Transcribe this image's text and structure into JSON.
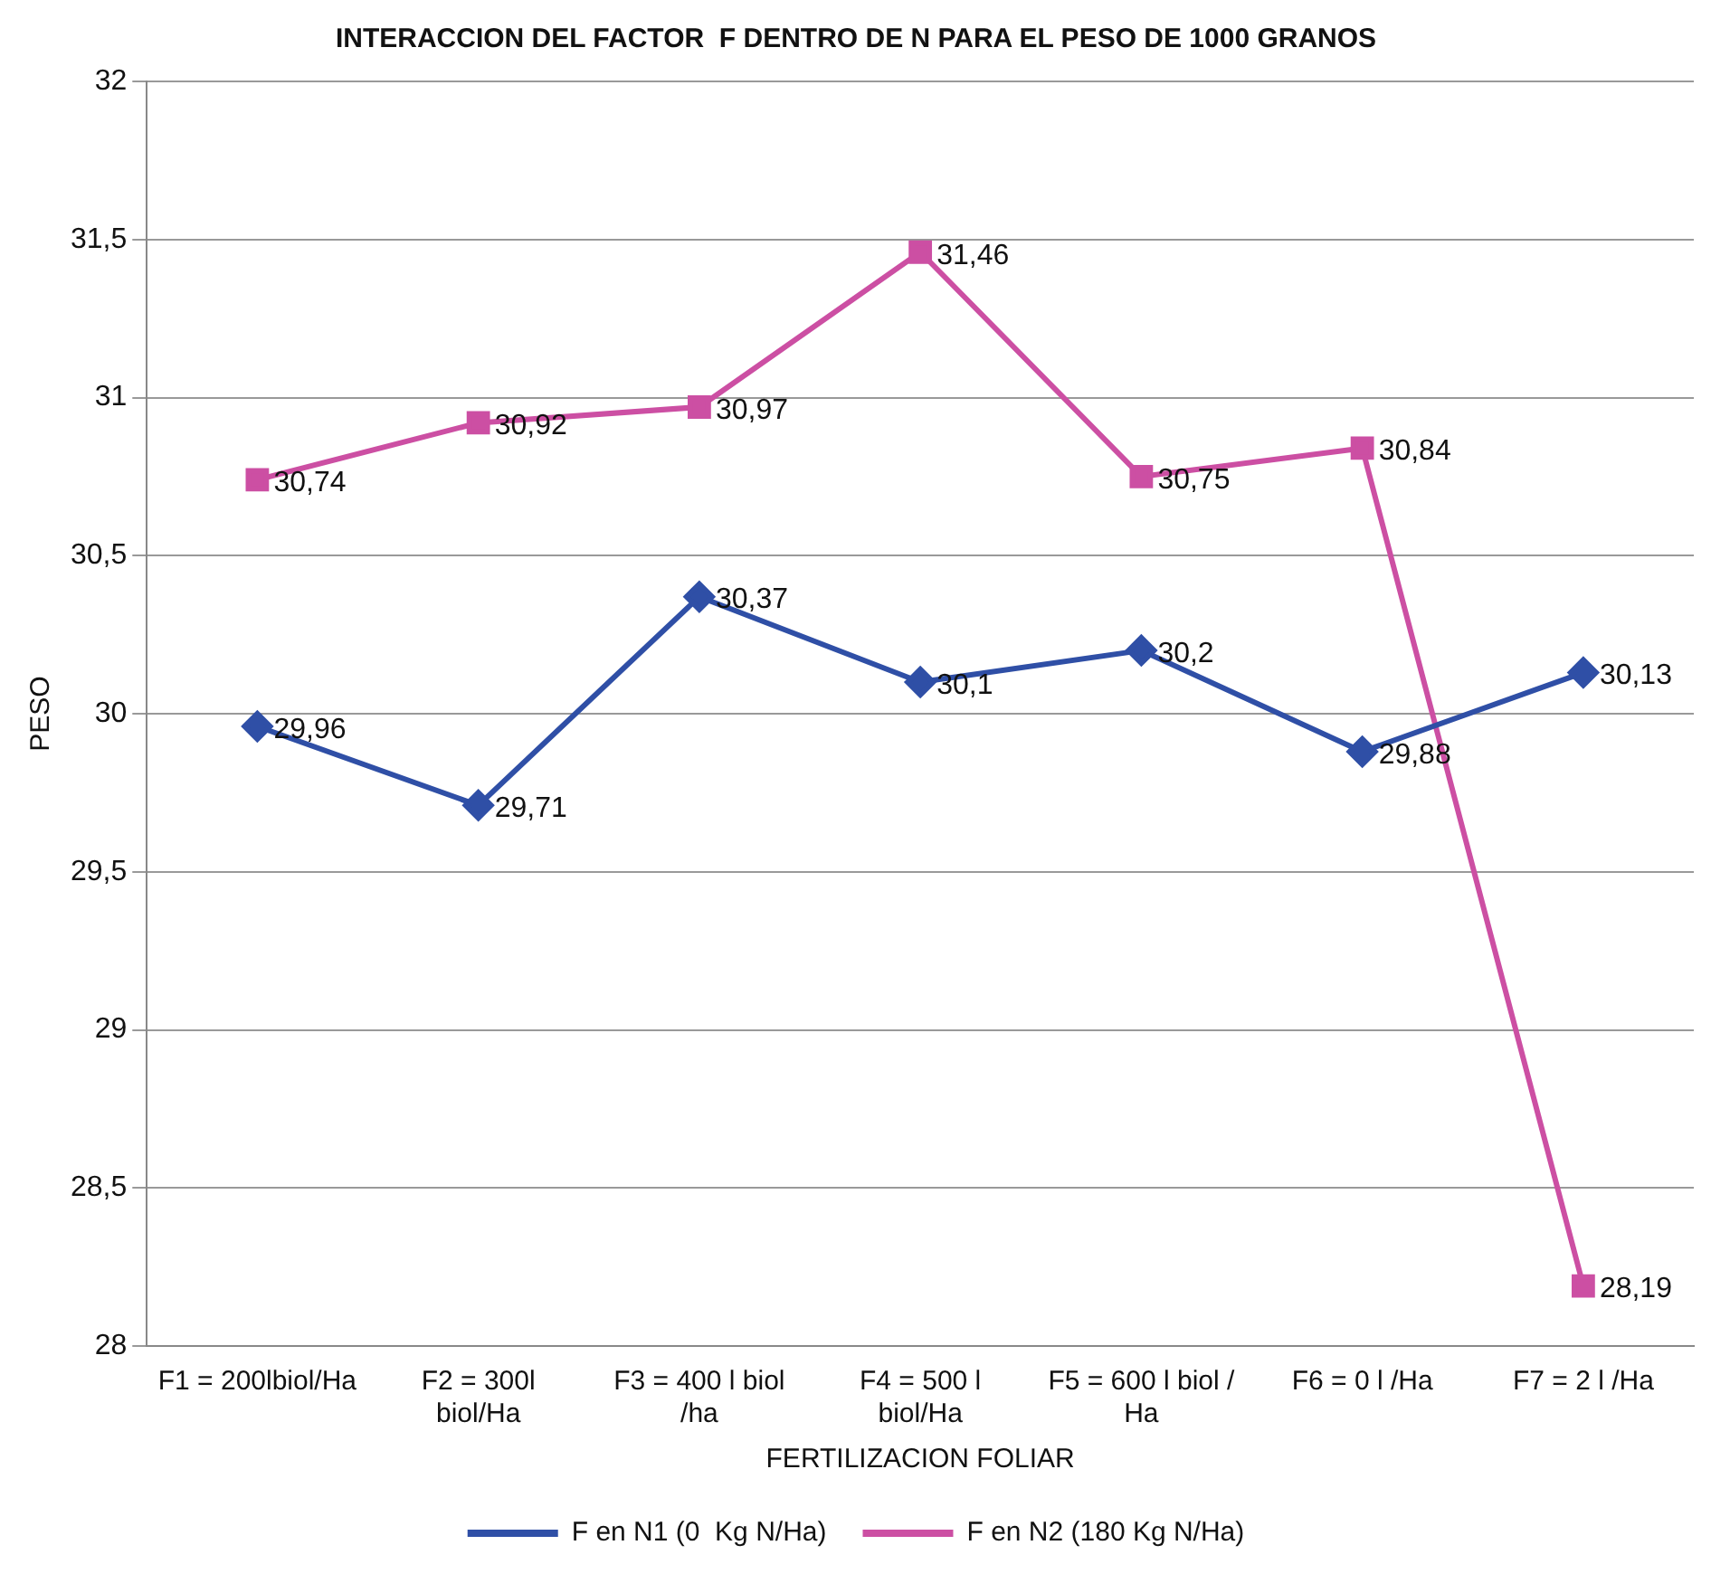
{
  "chart_data": {
    "type": "line",
    "title": "INTERACCION DEL FACTOR  F DENTRO DE N PARA EL PESO DE 1000 GRANOS",
    "xlabel": "FERTILIZACION FOLIAR",
    "ylabel": "PESO",
    "categories": [
      "F1 = 200lbiol/Ha",
      "F2 = 300l biol/Ha",
      "F3 = 400 l biol /ha",
      "F4 = 500 l biol/Ha",
      "F5 = 600 l biol / Ha",
      "F6 = 0 l /Ha",
      "F7 = 2 l /Ha"
    ],
    "series": [
      {
        "name": "F en N1 (0  Kg N/Ha)",
        "color": "#2f4fa6",
        "marker": "diamond",
        "values": [
          29.96,
          29.71,
          30.37,
          30.1,
          30.2,
          29.88,
          30.13
        ],
        "value_labels": [
          "29,96",
          "29,71",
          "30,37",
          "30,1",
          "30,2",
          "29,88",
          "30,13"
        ]
      },
      {
        "name": "F en N2 (180 Kg N/Ha)",
        "color": "#cc4fa3",
        "marker": "square",
        "values": [
          30.74,
          30.92,
          30.97,
          31.46,
          30.75,
          30.84,
          28.19
        ],
        "value_labels": [
          "30,74",
          "30,92",
          "30,97",
          "31,46",
          "30,75",
          "30,84",
          "28,19"
        ]
      }
    ],
    "ylim": [
      28,
      32
    ],
    "yticks": [
      28,
      {
        "value": 28.5,
        "label": "28,5"
      },
      29,
      {
        "value": 29.5,
        "label": "29,5"
      },
      30,
      {
        "value": 30.5,
        "label": "30,5"
      },
      31,
      {
        "value": 31.5,
        "label": "31,5"
      },
      32
    ],
    "grid": "y",
    "legend": "bottom",
    "line_style": "solid"
  }
}
